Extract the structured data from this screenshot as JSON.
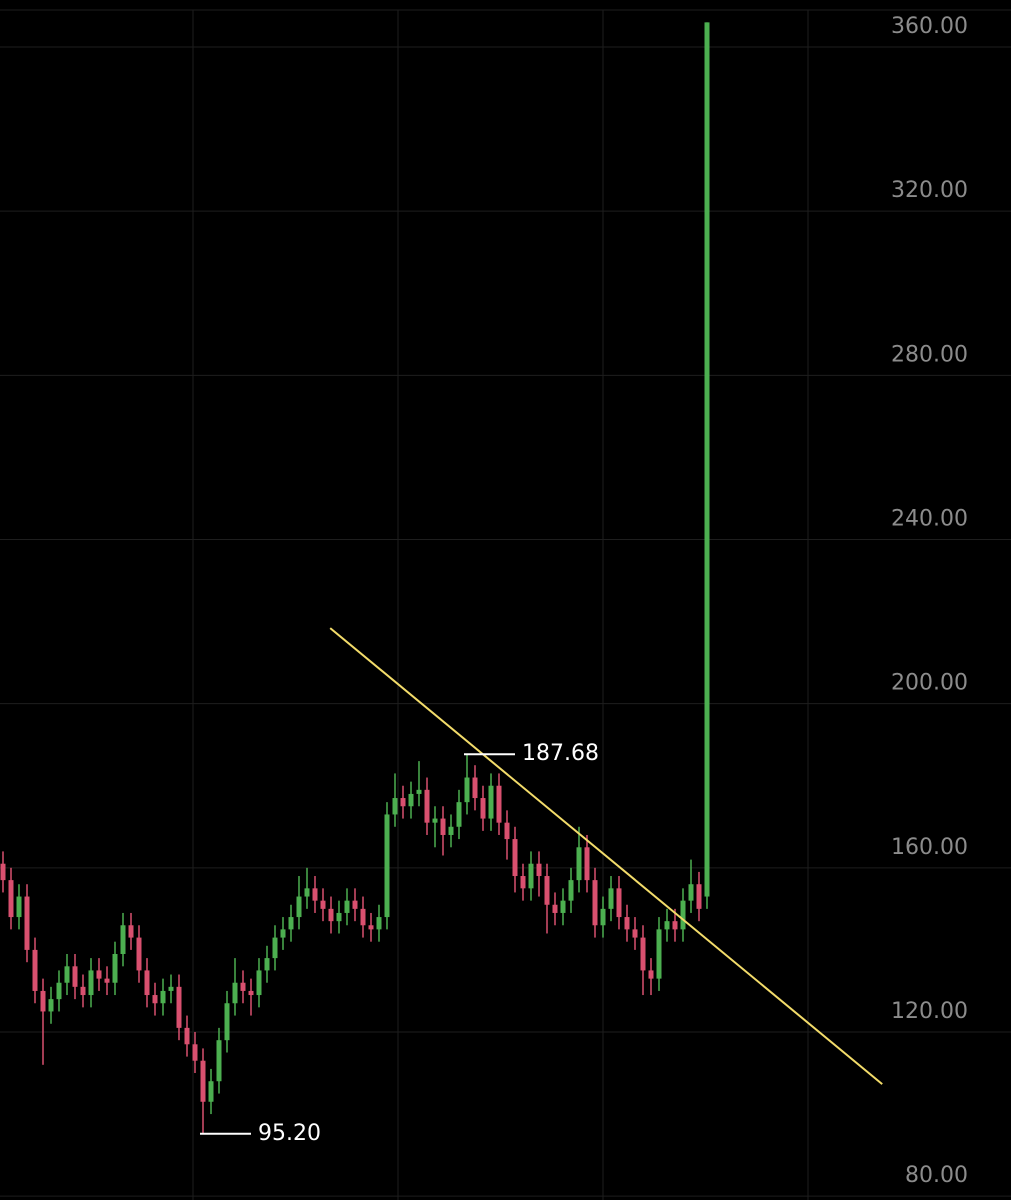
{
  "chart_data": {
    "type": "candlestick",
    "categories": [
      null,
      null,
      null,
      null,
      null,
      null,
      null,
      null,
      null,
      null,
      null,
      null,
      null,
      null,
      null,
      null,
      null,
      null,
      null,
      null,
      null,
      null,
      null,
      null,
      null,
      null,
      null,
      null,
      null,
      null,
      null,
      null,
      null,
      null,
      null,
      null,
      null,
      null,
      null,
      null,
      null,
      null,
      null,
      null,
      null,
      null,
      null,
      null,
      null,
      null,
      null,
      null,
      null,
      null,
      null,
      null,
      null,
      null,
      null,
      null,
      null,
      null,
      null,
      null,
      null,
      null,
      null,
      null,
      null,
      null,
      null,
      null,
      null,
      null,
      null,
      null,
      null,
      null,
      null,
      null,
      null,
      null,
      null,
      null,
      null,
      null,
      null,
      null,
      null
    ],
    "open": [
      161,
      157,
      148,
      153,
      140,
      130,
      125,
      128,
      132,
      136,
      131,
      129,
      135,
      133,
      132,
      139,
      146,
      143,
      135,
      129,
      127,
      130,
      131,
      121,
      117,
      113,
      103,
      108,
      118,
      127,
      132,
      130,
      129,
      135,
      138,
      143,
      145,
      148,
      153,
      155,
      152,
      150,
      147,
      149,
      152,
      150,
      146,
      145,
      148,
      173,
      177,
      175,
      178,
      179,
      171,
      172,
      168,
      170,
      176,
      182,
      177,
      172,
      180,
      171,
      167,
      158,
      155,
      161,
      158,
      151,
      149,
      152,
      157,
      165,
      157,
      146,
      150,
      155,
      148,
      145,
      143,
      135,
      133,
      145,
      147,
      145,
      152,
      156,
      153
    ],
    "high": [
      164,
      160,
      156,
      156,
      143,
      133,
      131,
      135,
      139,
      139,
      134,
      138,
      138,
      136,
      142,
      149,
      149,
      146,
      138,
      132,
      133,
      134,
      134,
      124,
      120,
      116,
      111,
      121,
      130,
      138,
      135,
      133,
      138,
      141,
      146,
      148,
      151,
      158,
      160,
      158,
      155,
      153,
      152,
      155,
      155,
      153,
      149,
      151,
      176,
      183,
      180,
      181,
      186,
      182,
      175,
      175,
      173,
      179,
      187.68,
      185,
      180,
      183,
      183,
      174,
      170,
      161,
      164,
      164,
      161,
      154,
      155,
      160,
      170,
      168,
      160,
      153,
      158,
      158,
      151,
      148,
      146,
      138,
      148,
      150,
      150,
      155,
      162,
      159,
      366
    ],
    "low": [
      154,
      145,
      145,
      137,
      127,
      112,
      122,
      125,
      129,
      128,
      126,
      126,
      130,
      129,
      129,
      136,
      140,
      132,
      126,
      124,
      124,
      127,
      118,
      114,
      110,
      95.2,
      100,
      105,
      115,
      124,
      127,
      124,
      126,
      132,
      135,
      140,
      142,
      145,
      150,
      149,
      147,
      144,
      144,
      146,
      147,
      143,
      142,
      142,
      145,
      170,
      172,
      172,
      175,
      168,
      165,
      163,
      165,
      167,
      173,
      174,
      169,
      169,
      168,
      162,
      154,
      152,
      152,
      153,
      144,
      146,
      146,
      149,
      154,
      154,
      143,
      143,
      147,
      145,
      142,
      140,
      129,
      129,
      130,
      142,
      142,
      142,
      149,
      147,
      150
    ],
    "close": [
      157,
      148,
      153,
      140,
      130,
      125,
      128,
      132,
      136,
      131,
      129,
      135,
      133,
      132,
      139,
      146,
      143,
      135,
      129,
      127,
      130,
      131,
      121,
      117,
      113,
      103,
      108,
      118,
      127,
      132,
      130,
      129,
      135,
      138,
      143,
      145,
      148,
      153,
      155,
      152,
      150,
      147,
      149,
      152,
      150,
      146,
      145,
      148,
      173,
      177,
      175,
      178,
      179,
      171,
      172,
      168,
      170,
      176,
      182,
      177,
      172,
      180,
      171,
      167,
      158,
      155,
      161,
      158,
      151,
      149,
      152,
      157,
      165,
      157,
      146,
      150,
      155,
      148,
      145,
      143,
      135,
      133,
      145,
      147,
      145,
      152,
      156,
      150,
      366
    ],
    "up_color": "#4caf50",
    "down_color": "#d9506f",
    "xlim": [
      -0.375,
      126
    ],
    "ylim": [
      79.06,
      371.45
    ],
    "yticks": [
      {
        "value": 80,
        "label": "80.00"
      },
      {
        "value": 120,
        "label": "120.00"
      },
      {
        "value": 160,
        "label": "160.00"
      },
      {
        "value": 200,
        "label": "200.00"
      },
      {
        "value": 240,
        "label": "240.00"
      },
      {
        "value": 280,
        "label": "280.00"
      },
      {
        "value": 320,
        "label": "320.00"
      },
      {
        "value": 360,
        "label": "360.00"
      }
    ],
    "grid": true,
    "trendline": {
      "x": [
        40.9,
        109.9
      ],
      "y": [
        218.4,
        107.3
      ],
      "color": "#f3dc6a"
    },
    "markers": [
      {
        "index": 58,
        "value": 187.68,
        "label": "187.68"
      },
      {
        "index": 25,
        "value": 95.2,
        "label": "95.20"
      }
    ]
  }
}
